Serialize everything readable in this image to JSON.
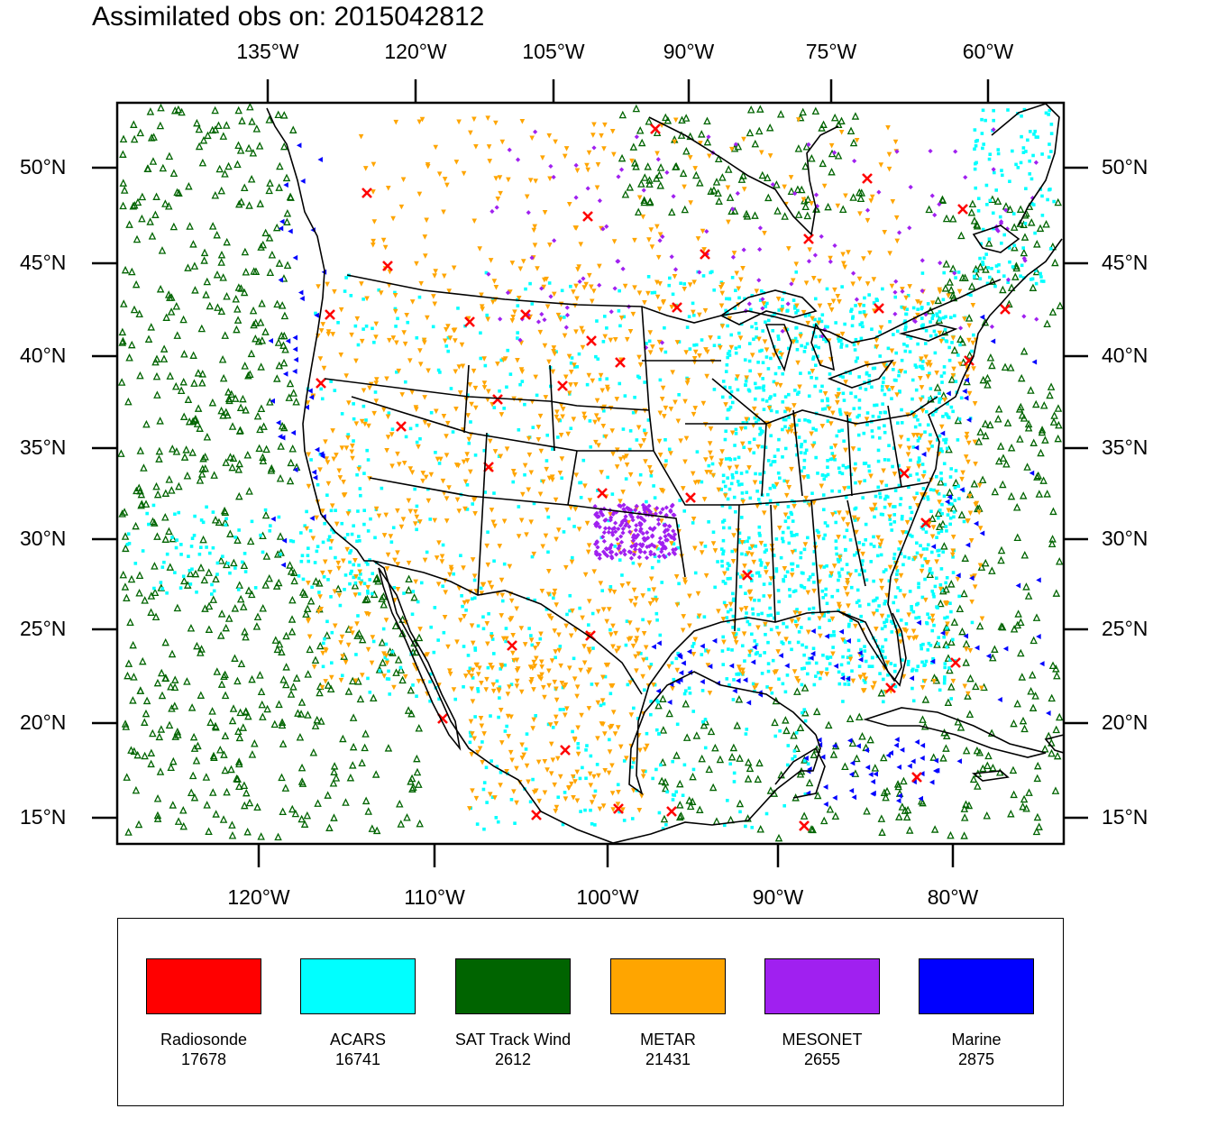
{
  "title": "Assimilated obs on: 2015042812",
  "top_lon_labels": [
    "135°W",
    "120°W",
    "105°W",
    "90°W",
    "75°W",
    "60°W"
  ],
  "bottom_lon_labels": [
    "120°W",
    "110°W",
    "100°W",
    "90°W",
    "80°W"
  ],
  "lat_labels": [
    "50°N",
    "45°N",
    "40°N",
    "35°N",
    "30°N",
    "25°N",
    "20°N",
    "15°N"
  ],
  "legend": [
    {
      "name": "Radiosonde",
      "count": "17678",
      "color": "#ff0000"
    },
    {
      "name": "ACARS",
      "count": "16741",
      "color": "#00ffff"
    },
    {
      "name": "SAT Track Wind",
      "count": "2612",
      "color": "#006400"
    },
    {
      "name": "METAR",
      "count": "21431",
      "color": "#ffa500"
    },
    {
      "name": "MESONET",
      "count": "2655",
      "color": "#a020f0"
    },
    {
      "name": "Marine",
      "count": "2875",
      "color": "#0000ff"
    }
  ],
  "map": {
    "extent_lat": [
      13.5,
      53.5
    ],
    "extent_lon_bottom": [
      -128,
      -73
    ],
    "markers": {
      "Radiosonde": "red-x",
      "ACARS": "cyan-square",
      "SAT Track Wind": "green-open-triangle",
      "METAR": "orange-down-triangle",
      "MESONET": "purple-diamond",
      "Marine": "blue-left-triangle"
    }
  }
}
